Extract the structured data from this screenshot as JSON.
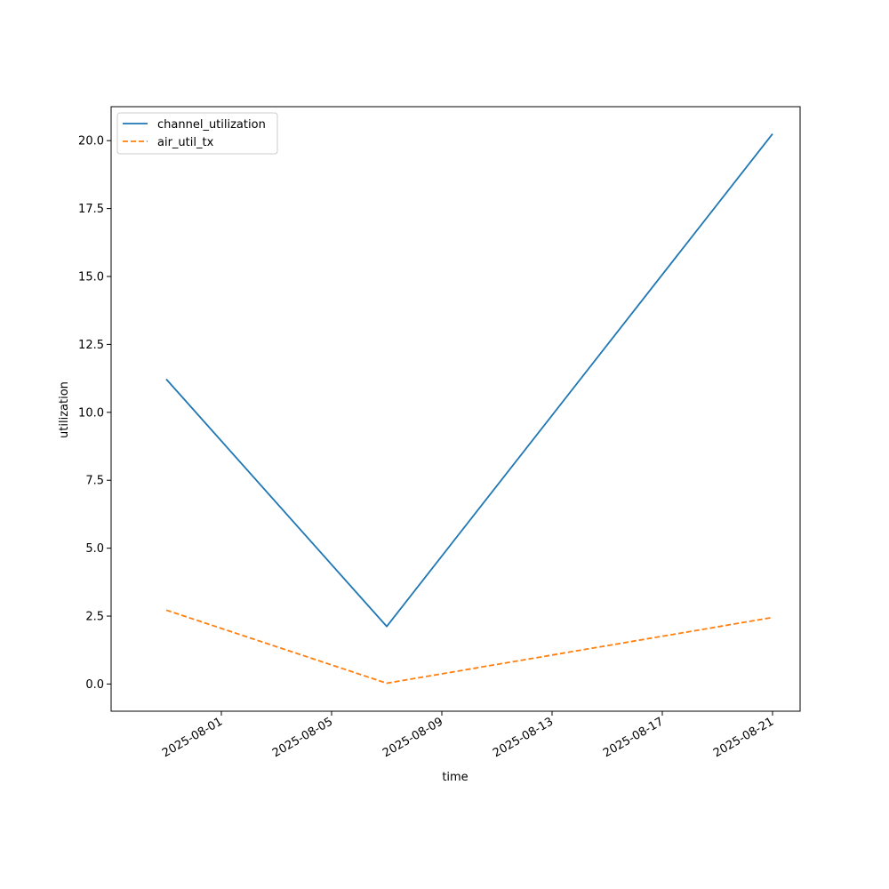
{
  "chart_data": {
    "type": "line",
    "title": "",
    "xlabel": "time",
    "ylabel": "utilization",
    "x": [
      "2025-07-30",
      "2025-08-07",
      "2025-08-21"
    ],
    "series": [
      {
        "name": "channel_utilization",
        "values": [
          11.22,
          2.12,
          20.25
        ],
        "color": "#1f77b4",
        "style": "solid"
      },
      {
        "name": "air_util_tx",
        "values": [
          2.72,
          0.03,
          2.45
        ],
        "color": "#ff7f0e",
        "style": "dashed"
      }
    ],
    "xlim": [
      "2025-07-28",
      "2025-08-22"
    ],
    "ylim": [
      -1.0,
      21.25
    ],
    "xticks": [
      "2025-08-01",
      "2025-08-05",
      "2025-08-09",
      "2025-08-13",
      "2025-08-17",
      "2025-08-21"
    ],
    "yticks": [
      "0.0",
      "2.5",
      "5.0",
      "7.5",
      "10.0",
      "12.5",
      "15.0",
      "17.5",
      "20.0"
    ],
    "grid": false,
    "legend_position": "upper-left"
  }
}
